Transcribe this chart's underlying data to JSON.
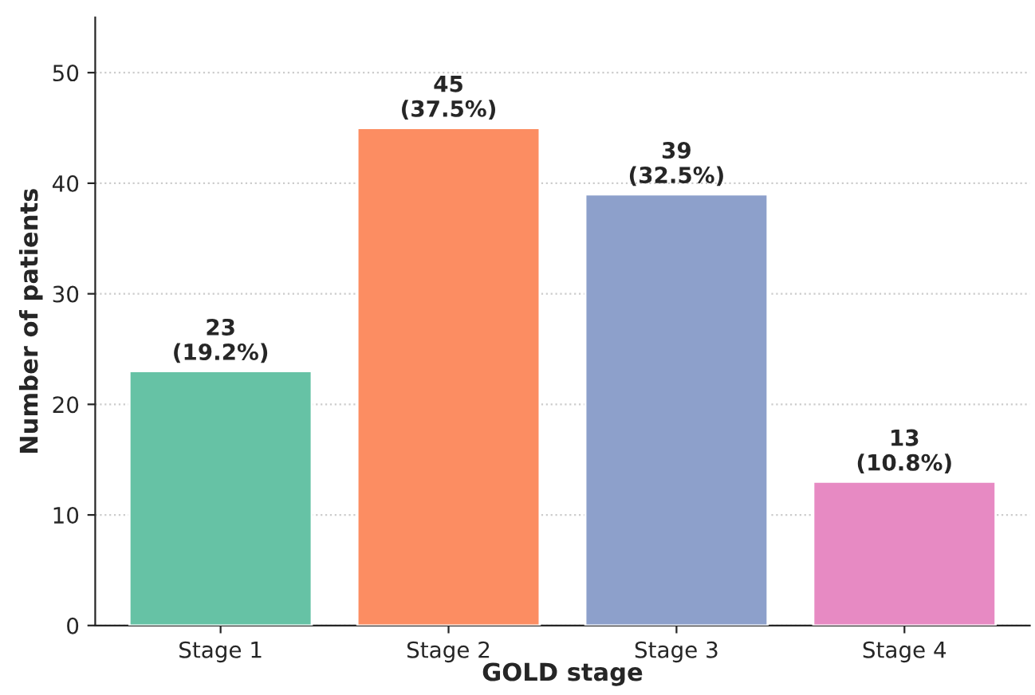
{
  "chart_data": {
    "type": "bar",
    "xlabel": "GOLD stage",
    "ylabel": "Number of patients",
    "categories": [
      "Stage 1",
      "Stage 2",
      "Stage 3",
      "Stage 4"
    ],
    "values": [
      23,
      45,
      39,
      13
    ],
    "colors": [
      "#66c2a5",
      "#fc8d62",
      "#8da0cb",
      "#e78ac3"
    ],
    "value_labels": [
      "23\n(19.2%)",
      "45\n(37.5%)",
      "39\n(32.5%)",
      "13\n(10.8%)"
    ],
    "ylim": [
      0,
      55
    ],
    "yticks": [
      0,
      10,
      20,
      30,
      40,
      50
    ],
    "grid": "y",
    "legend": false
  }
}
